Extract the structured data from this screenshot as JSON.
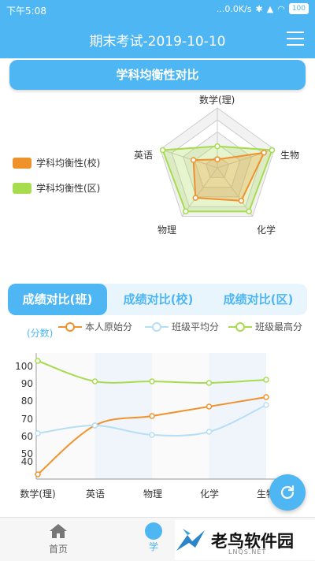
{
  "status_bar": {
    "time": "下午5:08",
    "network_speed": "...0.0K/s",
    "battery": "100"
  },
  "header": {
    "title": "期末考试-2019-10-10"
  },
  "radar_section": {
    "title": "学科均衡性对比",
    "legend": [
      {
        "label": "学科均衡性(校)",
        "color": "#f0922c"
      },
      {
        "label": "学科均衡性(区)",
        "color": "#a6dc4e"
      }
    ],
    "axes": [
      "数学(理)",
      "生物",
      "化学",
      "物理",
      "英语"
    ]
  },
  "tabs": [
    {
      "label": "成绩对比(班)",
      "active": true
    },
    {
      "label": "成绩对比(校)",
      "active": false
    },
    {
      "label": "成绩对比(区)",
      "active": false
    }
  ],
  "line_chart": {
    "unit_label": "(分数)",
    "legend": [
      {
        "label": "本人原始分",
        "color": "#f0922c"
      },
      {
        "label": "班级平均分",
        "color": "#b6def4"
      },
      {
        "label": "班级最高分",
        "color": "#a6dc4e"
      }
    ],
    "y_ticks": [
      "100",
      "90",
      "80",
      "70",
      "60",
      "50",
      "40"
    ],
    "x_ticks": [
      "数学(理)",
      "英语",
      "物理",
      "化学",
      "生物"
    ]
  },
  "bottom_nav": {
    "home_label": "首页",
    "second_label": "学"
  },
  "watermark": {
    "text": "老鸟软件园",
    "sub": "LNQS.NET"
  },
  "chart_data": [
    {
      "type": "line",
      "x": [
        "数学(理)",
        "英语",
        "物理",
        "化学",
        "生物"
      ],
      "series": [
        {
          "name": "本人原始分",
          "values": [
            33,
            64,
            70,
            76,
            82
          ],
          "color": "#f0922c"
        },
        {
          "name": "班级平均分",
          "values": [
            59,
            64,
            58,
            60,
            77
          ],
          "color": "#b6def4"
        },
        {
          "name": "班级最高分",
          "values": [
            105,
            92,
            92,
            91,
            93
          ],
          "color": "#a6dc4e"
        }
      ],
      "ylim": [
        30,
        110
      ],
      "grid": false
    },
    {
      "type": "radar",
      "axes": [
        "数学(理)",
        "生物",
        "化学",
        "物理",
        "英语"
      ],
      "series": [
        {
          "name": "学科均衡性(校)",
          "values": [
            0.14,
            0.82,
            0.68,
            0.62,
            0.42
          ],
          "color": "#f0922c"
        },
        {
          "name": "学科均衡性(区)",
          "values": [
            0.36,
            0.96,
            0.9,
            0.9,
            0.96
          ],
          "color": "#a6dc4e"
        }
      ]
    }
  ]
}
